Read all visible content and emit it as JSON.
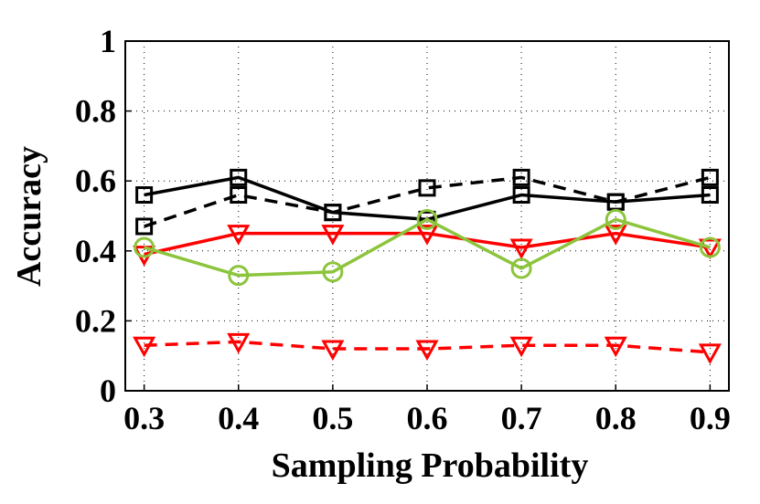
{
  "chart_data": {
    "type": "line",
    "x_label": "Sampling Probability",
    "y_label": "Accuracy",
    "x": [
      0.3,
      0.4,
      0.5,
      0.6,
      0.7,
      0.8,
      0.9
    ],
    "xlim": [
      0.28,
      0.92
    ],
    "xticks": [
      0.3,
      0.4,
      0.5,
      0.6,
      0.7,
      0.8,
      0.9
    ],
    "ylim": [
      0,
      1
    ],
    "yticks": [
      0,
      0.2,
      0.4,
      0.6,
      0.8,
      1
    ],
    "grid": true,
    "series": [
      {
        "color": "#000000",
        "marker": "square",
        "dashed": false,
        "values": [
          0.56,
          0.61,
          0.51,
          0.49,
          0.56,
          0.54,
          0.56
        ]
      },
      {
        "color": "#000000",
        "marker": "square",
        "dashed": true,
        "values": [
          0.47,
          0.56,
          0.51,
          0.58,
          0.61,
          0.54,
          0.61
        ]
      },
      {
        "color": "#ff0000",
        "marker": "triangle-down",
        "dashed": false,
        "values": [
          0.39,
          0.45,
          0.45,
          0.45,
          0.41,
          0.45,
          0.41
        ]
      },
      {
        "color": "#8cc43c",
        "marker": "circle",
        "dashed": false,
        "values": [
          0.41,
          0.33,
          0.34,
          0.49,
          0.35,
          0.49,
          0.41
        ]
      },
      {
        "color": "#ff0000",
        "marker": "triangle-down",
        "dashed": true,
        "values": [
          0.13,
          0.14,
          0.12,
          0.12,
          0.13,
          0.13,
          0.11
        ]
      }
    ]
  }
}
